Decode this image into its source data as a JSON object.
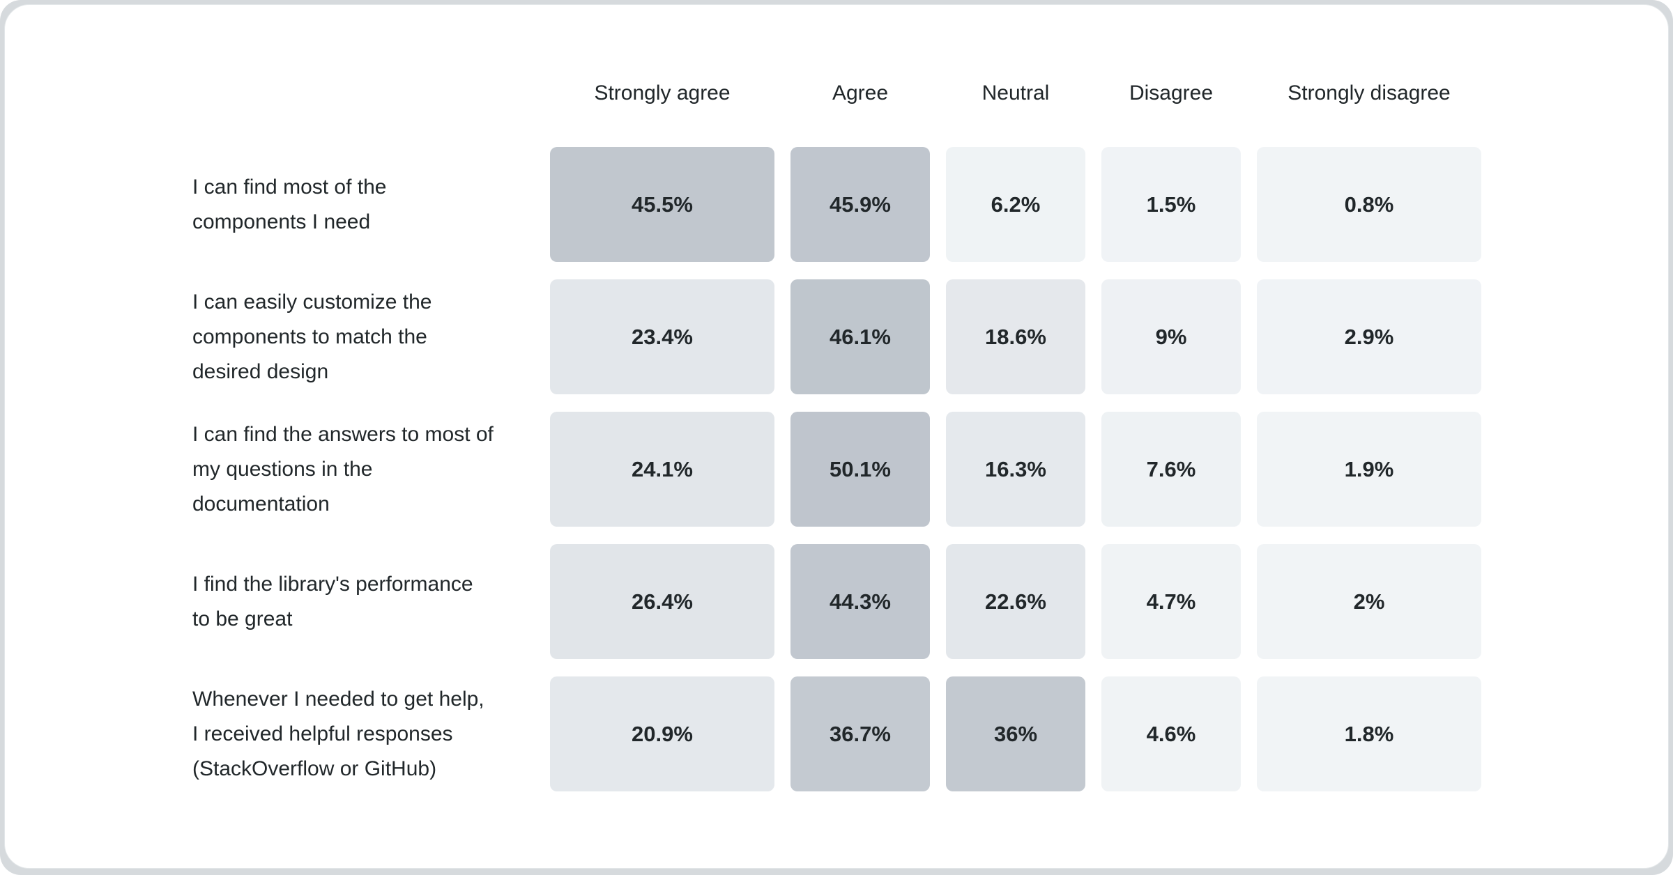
{
  "colors": {
    "page_edge": "#d6dadd",
    "card_bg": "#ffffff",
    "text": "#21272a",
    "scale_high": "#c0c6ce",
    "scale_mid": "#e3e7eb",
    "scale_low": "#f1f4f6"
  },
  "survey": {
    "columns": [
      "Strongly agree",
      "Agree",
      "Neutral",
      "Disagree",
      "Strongly disagree"
    ],
    "rows": [
      {
        "label": "I can find most of the components I need",
        "values": [
          "45.5%",
          "45.9%",
          "6.2%",
          "1.5%",
          "0.8%"
        ],
        "fills": [
          "#c1c7ce",
          "#c0c6ce",
          "#eff3f5",
          "#f0f3f6",
          "#f1f4f6"
        ]
      },
      {
        "label": "I can easily customize the components to match the desired design",
        "values": [
          "23.4%",
          "46.1%",
          "18.6%",
          "9%",
          "2.9%"
        ],
        "fills": [
          "#e3e7eb",
          "#bfc6cd",
          "#e5e8ec",
          "#eef1f4",
          "#f0f3f6"
        ]
      },
      {
        "label": "I can find the answers to most of my questions in the documentation",
        "values": [
          "24.1%",
          "50.1%",
          "16.3%",
          "7.6%",
          "1.9%"
        ],
        "fills": [
          "#e2e6ea",
          "#bfc5cd",
          "#e5e9ed",
          "#eef2f4",
          "#f1f4f6"
        ]
      },
      {
        "label": "I find the library's performance to be great",
        "values": [
          "26.4%",
          "44.3%",
          "22.6%",
          "4.7%",
          "2%"
        ],
        "fills": [
          "#e1e5e9",
          "#c1c7cf",
          "#e3e7eb",
          "#f0f3f5",
          "#f1f4f6"
        ]
      },
      {
        "label": "Whenever I needed to get help, I received helpful responses (StackOverflow or GitHub)",
        "values": [
          "20.9%",
          "36.7%",
          "36%",
          "4.6%",
          "1.8%"
        ],
        "fills": [
          "#e4e8ec",
          "#c4cad1",
          "#c3c9d0",
          "#f0f3f5",
          "#f1f4f6"
        ]
      }
    ]
  },
  "chart_data": {
    "type": "heatmap",
    "categories": [
      "Strongly agree",
      "Agree",
      "Neutral",
      "Disagree",
      "Strongly disagree"
    ],
    "rows": [
      "I can find most of the components I need",
      "I can easily customize the components to match the desired design",
      "I can find the answers to most of my questions in the documentation",
      "I find the library's performance to be great",
      "Whenever I needed to get help, I received helpful responses (StackOverflow or GitHub)"
    ],
    "values": [
      [
        45.5,
        45.9,
        6.2,
        1.5,
        0.8
      ],
      [
        23.4,
        46.1,
        18.6,
        9.0,
        2.9
      ],
      [
        24.1,
        50.1,
        16.3,
        7.6,
        1.9
      ],
      [
        26.4,
        44.3,
        22.6,
        4.7,
        2.0
      ],
      [
        20.9,
        36.7,
        36.0,
        4.6,
        1.8
      ]
    ],
    "value_unit": "percent",
    "title": "",
    "legend": "none",
    "grid": "off",
    "color_scale": {
      "low_value_color": "#f1f4f6",
      "high_value_color": "#bfc5cd"
    }
  }
}
